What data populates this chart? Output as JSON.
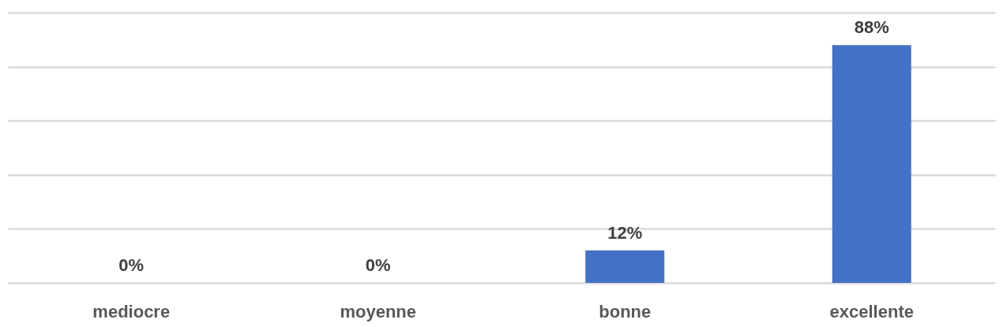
{
  "chart_data": {
    "type": "bar",
    "categories": [
      "mediocre",
      "moyenne",
      "bonne",
      "excellente"
    ],
    "values": [
      0,
      0,
      12,
      88
    ],
    "color": "#4472c4",
    "value_labels": [
      "0%",
      "0%",
      "12%",
      "88%"
    ],
    "ylim": [
      0,
      100
    ],
    "yticks": [
      0,
      20,
      40,
      60,
      80,
      100
    ],
    "grid": "y",
    "tick_labels": "x"
  }
}
